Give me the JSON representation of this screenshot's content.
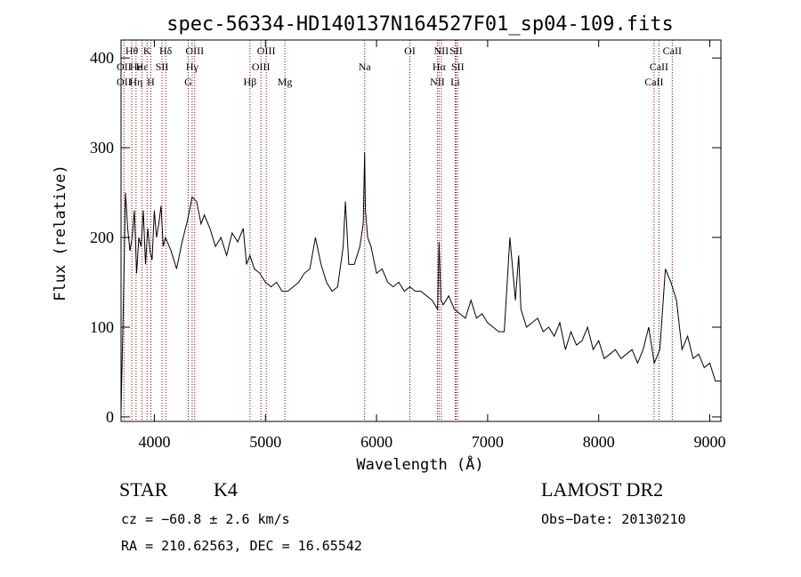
{
  "chart_data": {
    "type": "line",
    "title": "spec-56334-HD140137N164527F01_sp04-109.fits",
    "xlabel": "Wavelength (Å)",
    "ylabel": "Flux (relative)",
    "xlim": [
      3700,
      9100
    ],
    "ylim": [
      -5,
      420
    ],
    "x_ticks": [
      4000,
      5000,
      6000,
      7000,
      8000,
      9000
    ],
    "y_ticks": [
      0,
      100,
      200,
      300,
      400
    ],
    "grid": false,
    "line_color": "#000000",
    "marker_color": "#8b0000",
    "series": [
      {
        "x": [
          3700,
          3720,
          3740,
          3760,
          3780,
          3800,
          3820,
          3840,
          3860,
          3880,
          3900,
          3920,
          3940,
          3960,
          3980,
          4000,
          4020,
          4040,
          4060,
          4080,
          4100,
          4150,
          4200,
          4250,
          4300,
          4340,
          4380,
          4420,
          4450,
          4500,
          4550,
          4600,
          4650,
          4700,
          4750,
          4800,
          4830,
          4860,
          4900,
          4950,
          5000,
          5050,
          5100,
          5150,
          5200,
          5250,
          5300,
          5350,
          5400,
          5450,
          5500,
          5550,
          5600,
          5650,
          5700,
          5720,
          5750,
          5800,
          5850,
          5880,
          5893,
          5900,
          5920,
          5950,
          6000,
          6050,
          6100,
          6150,
          6200,
          6250,
          6300,
          6350,
          6400,
          6450,
          6500,
          6550,
          6563,
          6580,
          6600,
          6650,
          6700,
          6750,
          6800,
          6850,
          6900,
          6950,
          7000,
          7050,
          7100,
          7150,
          7200,
          7250,
          7280,
          7300,
          7350,
          7400,
          7450,
          7500,
          7550,
          7600,
          7650,
          7700,
          7750,
          7800,
          7850,
          7900,
          7950,
          8000,
          8050,
          8100,
          8150,
          8200,
          8250,
          8300,
          8350,
          8400,
          8450,
          8500,
          8550,
          8600,
          8650,
          8700,
          8750,
          8800,
          8850,
          8900,
          8950,
          9000,
          9050,
          9100
        ],
        "y": [
          5,
          120,
          250,
          210,
          185,
          200,
          230,
          160,
          200,
          190,
          230,
          170,
          210,
          185,
          175,
          230,
          200,
          215,
          235,
          190,
          200,
          185,
          165,
          195,
          220,
          245,
          240,
          215,
          225,
          210,
          190,
          200,
          180,
          205,
          195,
          210,
          170,
          180,
          165,
          160,
          150,
          145,
          150,
          140,
          140,
          145,
          150,
          160,
          165,
          200,
          170,
          150,
          140,
          145,
          190,
          240,
          170,
          170,
          190,
          215,
          295,
          230,
          200,
          190,
          160,
          165,
          150,
          145,
          150,
          140,
          145,
          140,
          140,
          135,
          130,
          120,
          195,
          130,
          125,
          135,
          120,
          115,
          110,
          130,
          110,
          115,
          105,
          100,
          95,
          95,
          200,
          130,
          180,
          120,
          100,
          105,
          110,
          95,
          100,
          90,
          105,
          75,
          95,
          80,
          85,
          100,
          75,
          85,
          65,
          70,
          75,
          65,
          70,
          75,
          60,
          75,
          100,
          60,
          75,
          165,
          150,
          130,
          75,
          90,
          65,
          70,
          55,
          60,
          40,
          40
        ]
      }
    ],
    "line_markers": [
      {
        "label": "Hθ",
        "x": 3797,
        "row": 0
      },
      {
        "label": "OII",
        "x": 3727,
        "row": 1
      },
      {
        "label": "OII",
        "x": 3727,
        "row": 2
      },
      {
        "label": "He",
        "x": 3835,
        "row": 1
      },
      {
        "label": "Hη",
        "x": 3835,
        "row": 2
      },
      {
        "label": "K",
        "x": 3934,
        "row": 0
      },
      {
        "label": "Hε",
        "x": 3889,
        "row": 1
      },
      {
        "label": "SII",
        "x": 4069,
        "row": 1
      },
      {
        "label": "H",
        "x": 3968,
        "row": 2
      },
      {
        "label": "Hδ",
        "x": 4102,
        "row": 0
      },
      {
        "label": "OIII",
        "x": 4363,
        "row": 0
      },
      {
        "label": "Hγ",
        "x": 4340,
        "row": 1
      },
      {
        "label": "G",
        "x": 4305,
        "row": 2
      },
      {
        "label": "OIII",
        "x": 5007,
        "row": 0
      },
      {
        "label": "OIII",
        "x": 4959,
        "row": 1
      },
      {
        "label": "Hβ",
        "x": 4861,
        "row": 2
      },
      {
        "label": "Mg",
        "x": 5175,
        "row": 2
      },
      {
        "label": "Na",
        "x": 5893,
        "row": 1
      },
      {
        "label": "OI",
        "x": 6300,
        "row": 0
      },
      {
        "label": "NII",
        "x": 6583,
        "row": 0
      },
      {
        "label": "SII",
        "x": 6716,
        "row": 0
      },
      {
        "label": "Hα",
        "x": 6563,
        "row": 1
      },
      {
        "label": "SII",
        "x": 6731,
        "row": 1
      },
      {
        "label": "NII",
        "x": 6548,
        "row": 2
      },
      {
        "label": "Li",
        "x": 6708,
        "row": 2
      },
      {
        "label": "CaII",
        "x": 8662,
        "row": 0
      },
      {
        "label": "CaII",
        "x": 8542,
        "row": 1
      },
      {
        "label": "CaII",
        "x": 8498,
        "row": 2
      }
    ]
  },
  "footer": {
    "object_class": "STAR",
    "subclass": "K4",
    "survey": "LAMOST DR2",
    "cz": "cz = −60.8 ± 2.6 km/s",
    "obs_date": "Obs−Date: 20130210",
    "coords": "RA = 210.62563, DEC =  16.65542"
  }
}
